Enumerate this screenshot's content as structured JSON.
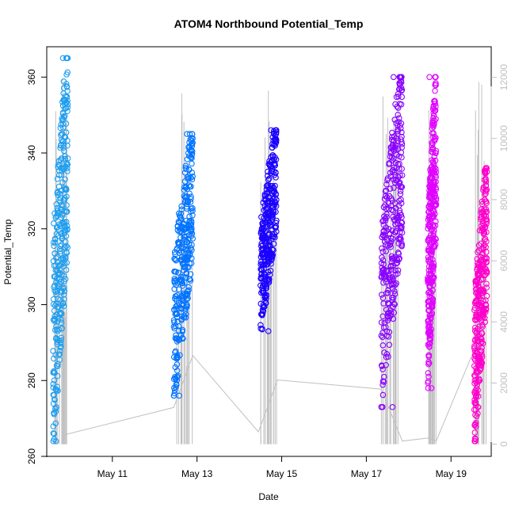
{
  "chart_data": {
    "type": "scatter",
    "title": "ATOM4 Northbound Potential_Temp",
    "xlabel": "Date",
    "ylabel": "Potential_Temp",
    "x_ticks": [
      "May 11",
      "May 13",
      "May 15",
      "May 17",
      "May 19"
    ],
    "y_ticks": [
      260,
      280,
      300,
      320,
      340,
      360
    ],
    "y_right_ticks": [
      0,
      2000,
      4000,
      6000,
      8000,
      10000,
      12000
    ],
    "xlim_days": [
      9.45,
      19.95
    ],
    "ylim": [
      260,
      368
    ],
    "y_right_lim": [
      -400,
      13000
    ],
    "grid": false,
    "series": [
      {
        "color": "#1e9ef0",
        "day_range": [
          9.6,
          9.95
        ],
        "temp_range": [
          264,
          365
        ]
      },
      {
        "color": "#0073ff",
        "day_range": [
          12.45,
          12.9
        ],
        "temp_range": [
          276,
          345
        ]
      },
      {
        "color": "#1a00ff",
        "day_range": [
          14.5,
          14.88
        ],
        "temp_range": [
          293,
          346
        ]
      },
      {
        "color": "#8800ff",
        "day_range": [
          17.35,
          17.85
        ],
        "temp_range": [
          273,
          360
        ]
      },
      {
        "color": "#e000ff",
        "day_range": [
          18.45,
          18.65
        ],
        "temp_range": [
          278,
          360
        ]
      },
      {
        "color": "#ff00cc",
        "day_range": [
          19.55,
          19.85
        ],
        "temp_range": [
          264,
          336
        ]
      }
    ],
    "secondary_line": {
      "color": "#c0c0c0",
      "points": [
        {
          "day": 9.85,
          "value": 300
        },
        {
          "day": 12.45,
          "value": 1200
        },
        {
          "day": 12.9,
          "value": 2900
        },
        {
          "day": 14.45,
          "value": 400
        },
        {
          "day": 14.9,
          "value": 2100
        },
        {
          "day": 17.35,
          "value": 1800
        },
        {
          "day": 17.85,
          "value": 100
        },
        {
          "day": 18.45,
          "value": 200
        },
        {
          "day": 18.65,
          "value": 100
        },
        {
          "day": 19.55,
          "value": 3100
        }
      ]
    }
  }
}
